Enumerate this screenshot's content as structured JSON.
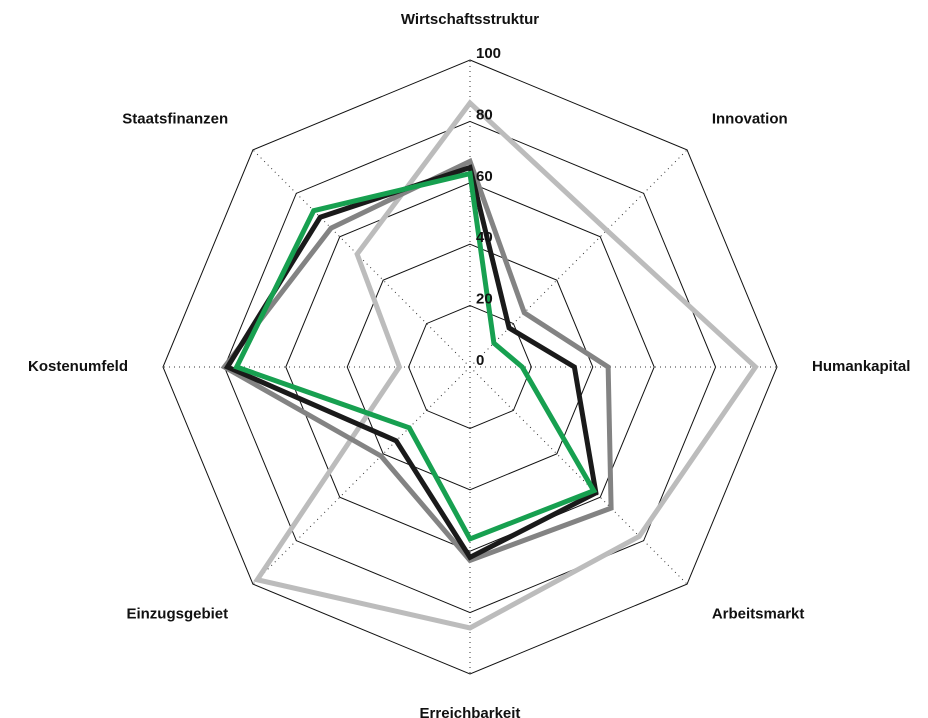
{
  "chart_data": {
    "type": "radar",
    "categories": [
      "Wirtschaftsstruktur",
      "Innovation",
      "Humankapital",
      "Arbeitsmarkt",
      "Erreichbarkeit",
      "Einzugsgebiet",
      "Kostenumfeld",
      "Staatsfinanzen"
    ],
    "series": [
      {
        "color": "#bcbcbc",
        "values": [
          86,
          63,
          93,
          78,
          85,
          98,
          23,
          52
        ]
      },
      {
        "color": "#838383",
        "values": [
          67,
          25,
          45,
          65,
          63,
          41,
          80,
          64
        ]
      },
      {
        "color": "#1a1a1a",
        "values": [
          65,
          18,
          34,
          58,
          62,
          34,
          79,
          69
        ]
      },
      {
        "color": "#17a050",
        "values": [
          63,
          11,
          17,
          57,
          56,
          28,
          76,
          72
        ]
      }
    ],
    "ylim": [
      0,
      100
    ],
    "yticks": [
      0,
      20,
      40,
      60,
      80,
      100
    ],
    "grid": true
  }
}
